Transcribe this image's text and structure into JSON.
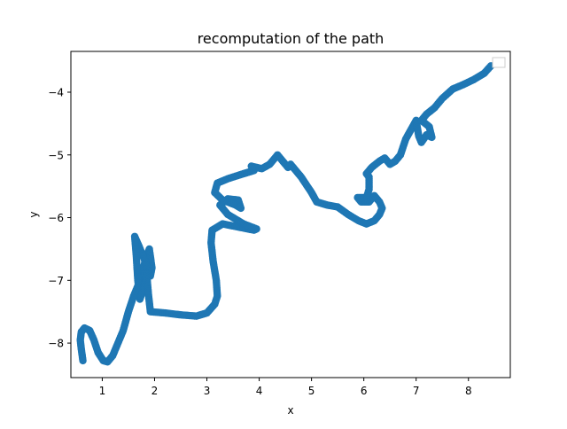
{
  "chart_data": {
    "type": "scatter",
    "title": "recomputation of the path",
    "xlabel": "x",
    "ylabel": "y",
    "xlim": [
      0.4,
      8.8
    ],
    "ylim": [
      -8.55,
      -3.35
    ],
    "xticks": [
      1,
      2,
      3,
      4,
      5,
      6,
      7,
      8
    ],
    "yticks": [
      -8,
      -7,
      -6,
      -5,
      -4
    ],
    "grid": false,
    "legend": "upper right (empty)",
    "color": "#1f77b4",
    "series": [
      {
        "values": [
          [
            0.63,
            -8.28
          ],
          [
            0.6,
            -8.1
          ],
          [
            0.58,
            -7.95
          ],
          [
            0.6,
            -7.82
          ],
          [
            0.66,
            -7.76
          ],
          [
            0.76,
            -7.8
          ],
          [
            0.84,
            -7.95
          ],
          [
            0.92,
            -8.15
          ],
          [
            1.02,
            -8.28
          ],
          [
            1.1,
            -8.3
          ],
          [
            1.2,
            -8.2
          ],
          [
            1.3,
            -8.0
          ],
          [
            1.4,
            -7.8
          ],
          [
            1.5,
            -7.5
          ],
          [
            1.6,
            -7.25
          ],
          [
            1.7,
            -7.05
          ],
          [
            1.78,
            -6.82
          ],
          [
            1.85,
            -6.6
          ],
          [
            1.9,
            -6.5
          ],
          [
            1.95,
            -6.8
          ],
          [
            1.92,
            -6.93
          ],
          [
            1.82,
            -6.7
          ],
          [
            1.7,
            -6.45
          ],
          [
            1.62,
            -6.3
          ],
          [
            1.65,
            -6.6
          ],
          [
            1.68,
            -7.0
          ],
          [
            1.72,
            -7.3
          ],
          [
            1.8,
            -7.1
          ],
          [
            1.85,
            -6.9
          ],
          [
            1.88,
            -7.2
          ],
          [
            1.92,
            -7.5
          ],
          [
            2.2,
            -7.52
          ],
          [
            2.5,
            -7.55
          ],
          [
            2.8,
            -7.57
          ],
          [
            3.0,
            -7.52
          ],
          [
            3.15,
            -7.38
          ],
          [
            3.2,
            -7.25
          ],
          [
            3.18,
            -7.0
          ],
          [
            3.12,
            -6.7
          ],
          [
            3.08,
            -6.4
          ],
          [
            3.1,
            -6.2
          ],
          [
            3.3,
            -6.1
          ],
          [
            3.6,
            -6.15
          ],
          [
            3.9,
            -6.2
          ],
          [
            3.95,
            -6.18
          ],
          [
            3.7,
            -6.1
          ],
          [
            3.4,
            -5.95
          ],
          [
            3.25,
            -5.8
          ],
          [
            3.4,
            -5.7
          ],
          [
            3.6,
            -5.72
          ],
          [
            3.65,
            -5.85
          ],
          [
            3.55,
            -5.8
          ],
          [
            3.3,
            -5.72
          ],
          [
            3.15,
            -5.6
          ],
          [
            3.2,
            -5.45
          ],
          [
            3.4,
            -5.38
          ],
          [
            3.7,
            -5.3
          ],
          [
            3.9,
            -5.25
          ],
          [
            3.85,
            -5.18
          ],
          [
            4.05,
            -5.22
          ],
          [
            4.2,
            -5.15
          ],
          [
            4.35,
            -5.0
          ],
          [
            4.45,
            -5.1
          ],
          [
            4.55,
            -5.2
          ],
          [
            4.6,
            -5.15
          ],
          [
            4.8,
            -5.35
          ],
          [
            5.0,
            -5.6
          ],
          [
            5.1,
            -5.75
          ],
          [
            5.3,
            -5.8
          ],
          [
            5.5,
            -5.83
          ],
          [
            5.7,
            -5.95
          ],
          [
            5.9,
            -6.05
          ],
          [
            6.05,
            -6.1
          ],
          [
            6.2,
            -6.05
          ],
          [
            6.3,
            -5.95
          ],
          [
            6.35,
            -5.85
          ],
          [
            6.3,
            -5.75
          ],
          [
            6.2,
            -5.65
          ],
          [
            6.1,
            -5.75
          ],
          [
            5.95,
            -5.75
          ],
          [
            5.88,
            -5.68
          ],
          [
            6.05,
            -5.68
          ],
          [
            6.1,
            -5.55
          ],
          [
            6.1,
            -5.35
          ],
          [
            6.05,
            -5.3
          ],
          [
            6.15,
            -5.2
          ],
          [
            6.3,
            -5.1
          ],
          [
            6.4,
            -5.05
          ],
          [
            6.5,
            -5.15
          ],
          [
            6.6,
            -5.1
          ],
          [
            6.7,
            -5.0
          ],
          [
            6.8,
            -4.75
          ],
          [
            6.9,
            -4.6
          ],
          [
            7.0,
            -4.45
          ],
          [
            7.05,
            -4.7
          ],
          [
            7.1,
            -4.8
          ],
          [
            7.2,
            -4.68
          ],
          [
            7.3,
            -4.72
          ],
          [
            7.25,
            -4.55
          ],
          [
            7.1,
            -4.45
          ],
          [
            7.2,
            -4.35
          ],
          [
            7.35,
            -4.25
          ],
          [
            7.5,
            -4.1
          ],
          [
            7.7,
            -3.95
          ],
          [
            7.9,
            -3.88
          ],
          [
            8.1,
            -3.8
          ],
          [
            8.3,
            -3.7
          ],
          [
            8.43,
            -3.58
          ]
        ]
      }
    ]
  }
}
